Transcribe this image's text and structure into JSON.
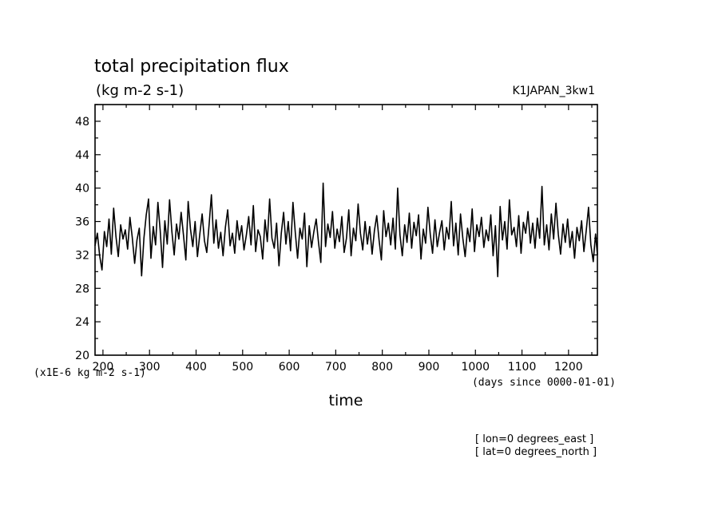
{
  "chart_data": {
    "type": "line",
    "title": "total precipitation flux",
    "subtitle": "(kg m-2 s-1)",
    "dataset_label": "K1JAPAN_3kw1",
    "xlabel": "time",
    "x_units_note": "(days since 0000-01-01)",
    "y_scale_note": "(x1E-6 kg m-2 s-1)",
    "xlim": [
      183,
      1262
    ],
    "ylim": [
      20,
      50
    ],
    "x_ticks": [
      200,
      300,
      400,
      500,
      600,
      700,
      800,
      900,
      1000,
      1100,
      1200
    ],
    "y_ticks": [
      20,
      24,
      28,
      32,
      36,
      40,
      44,
      48
    ],
    "grid": false,
    "series": [
      {
        "color": "#000000",
        "x": [
          183,
          188,
          193,
          198,
          203,
          208,
          213,
          218,
          223,
          228,
          233,
          238,
          243,
          248,
          253,
          258,
          263,
          268,
          273,
          278,
          283,
          288,
          293,
          298,
          303,
          308,
          313,
          318,
          323,
          328,
          333,
          338,
          343,
          348,
          353,
          358,
          363,
          368,
          373,
          378,
          383,
          388,
          393,
          398,
          403,
          408,
          413,
          418,
          423,
          428,
          433,
          438,
          443,
          448,
          453,
          458,
          463,
          468,
          473,
          478,
          483,
          488,
          493,
          498,
          503,
          508,
          513,
          518,
          523,
          528,
          533,
          538,
          543,
          548,
          553,
          558,
          563,
          568,
          573,
          578,
          583,
          588,
          593,
          598,
          603,
          608,
          613,
          618,
          623,
          628,
          633,
          638,
          643,
          648,
          653,
          658,
          663,
          668,
          673,
          678,
          683,
          688,
          693,
          698,
          703,
          708,
          713,
          718,
          723,
          728,
          733,
          738,
          743,
          748,
          753,
          758,
          763,
          768,
          773,
          778,
          783,
          788,
          793,
          798,
          803,
          808,
          813,
          818,
          823,
          828,
          833,
          838,
          843,
          848,
          853,
          858,
          863,
          868,
          873,
          878,
          883,
          888,
          893,
          898,
          903,
          908,
          913,
          918,
          923,
          928,
          933,
          938,
          943,
          948,
          953,
          958,
          963,
          968,
          973,
          978,
          983,
          988,
          993,
          998,
          1003,
          1008,
          1013,
          1018,
          1023,
          1028,
          1033,
          1038,
          1043,
          1048,
          1053,
          1058,
          1063,
          1068,
          1073,
          1078,
          1083,
          1088,
          1093,
          1098,
          1103,
          1108,
          1113,
          1118,
          1123,
          1128,
          1133,
          1138,
          1143,
          1148,
          1153,
          1158,
          1163,
          1168,
          1173,
          1178,
          1183,
          1188,
          1193,
          1198,
          1203,
          1208,
          1213,
          1218,
          1223,
          1228,
          1233,
          1238,
          1243,
          1248,
          1253,
          1258,
          1262
        ],
        "y": [
          33.1,
          34.6,
          31.9,
          30.2,
          34.8,
          33.0,
          36.3,
          32.1,
          37.6,
          34.2,
          31.8,
          35.6,
          33.9,
          35.0,
          32.7,
          36.5,
          34.1,
          31.0,
          33.8,
          35.2,
          29.5,
          34.0,
          36.8,
          38.7,
          31.6,
          35.4,
          33.2,
          38.3,
          34.9,
          30.5,
          36.1,
          33.3,
          38.6,
          34.8,
          32.0,
          35.7,
          33.9,
          37.1,
          34.3,
          31.4,
          38.4,
          35.1,
          33.0,
          36.0,
          31.8,
          34.5,
          36.9,
          33.7,
          32.3,
          35.6,
          39.2,
          33.4,
          36.2,
          32.8,
          34.7,
          31.9,
          35.3,
          37.4,
          33.1,
          34.6,
          32.2,
          36.1,
          33.8,
          35.5,
          32.6,
          34.4,
          36.6,
          33.2,
          37.9,
          32.4,
          35.0,
          34.2,
          31.5,
          36.2,
          33.6,
          38.7,
          34.0,
          32.8,
          35.8,
          30.7,
          34.6,
          37.1,
          33.3,
          36.0,
          32.5,
          38.3,
          34.7,
          31.6,
          35.2,
          33.9,
          37.0,
          30.6,
          35.5,
          32.9,
          34.8,
          36.3,
          33.5,
          31.1,
          40.6,
          33.0,
          35.7,
          34.1,
          37.2,
          32.8,
          35.1,
          33.6,
          36.6,
          32.3,
          34.0,
          37.4,
          31.9,
          35.2,
          33.7,
          38.1,
          34.6,
          32.6,
          36.0,
          33.3,
          35.4,
          32.1,
          34.9,
          36.7,
          33.8,
          31.4,
          37.3,
          34.2,
          35.8,
          33.2,
          36.4,
          32.7,
          40.0,
          34.4,
          31.9,
          35.6,
          33.5,
          37.0,
          32.8,
          35.9,
          34.3,
          36.8,
          31.5,
          35.1,
          33.4,
          37.7,
          34.5,
          32.2,
          36.2,
          33.0,
          34.7,
          36.1,
          32.6,
          35.3,
          33.9,
          38.4,
          33.1,
          35.8,
          32.0,
          36.9,
          34.0,
          31.8,
          35.2,
          33.6,
          37.5,
          32.4,
          35.6,
          34.2,
          36.5,
          32.9,
          35.0,
          33.7,
          36.8,
          31.9,
          35.5,
          29.4,
          37.8,
          33.8,
          36.0,
          32.7,
          38.6,
          34.4,
          35.3,
          33.0,
          36.7,
          32.2,
          35.9,
          34.6,
          37.2,
          33.4,
          35.8,
          32.8,
          36.4,
          34.0,
          40.2,
          33.2,
          35.6,
          32.6,
          36.9,
          33.9,
          38.2,
          34.5,
          32.1,
          35.7,
          33.5,
          36.3,
          32.9,
          34.8,
          31.6,
          35.3,
          33.7,
          36.1,
          32.4,
          34.9,
          37.7,
          33.2,
          31.2,
          34.5,
          32.0
        ]
      }
    ]
  },
  "footer": {
    "lon": "[ lon=0 degrees_east ]",
    "lat": "[ lat=0 degrees_north ]"
  }
}
